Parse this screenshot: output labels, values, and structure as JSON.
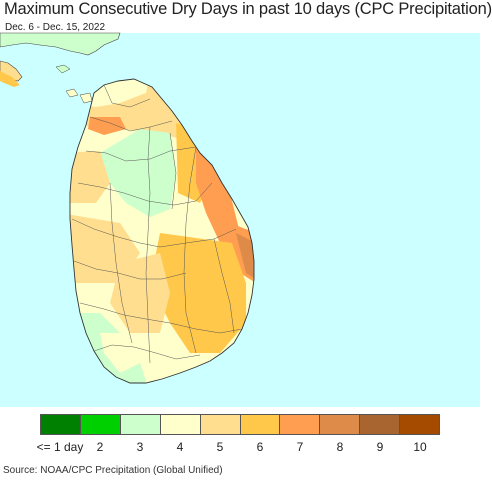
{
  "header": {
    "title": "Maximum Consecutive Dry Days in past 10 days (CPC Precipitation)",
    "subtitle": "Dec. 6 - Dec. 15, 2022"
  },
  "map": {
    "region": "Sri Lanka",
    "ocean_color": "#ccffff",
    "outside_land_color": "#ccffcc"
  },
  "legend": {
    "labels": [
      "<= 1 day",
      "2",
      "3",
      "4",
      "5",
      "6",
      "7",
      "8",
      "9",
      "10"
    ],
    "colors": [
      "#008000",
      "#00d000",
      "#ccffcc",
      "#ffffcc",
      "#ffdf8f",
      "#ffc84a",
      "#ff9e50",
      "#de8a48",
      "#a86530",
      "#a54b00"
    ]
  },
  "footer": {
    "source": "Source: NOAA/CPC Precipitation (Global Unified)"
  }
}
